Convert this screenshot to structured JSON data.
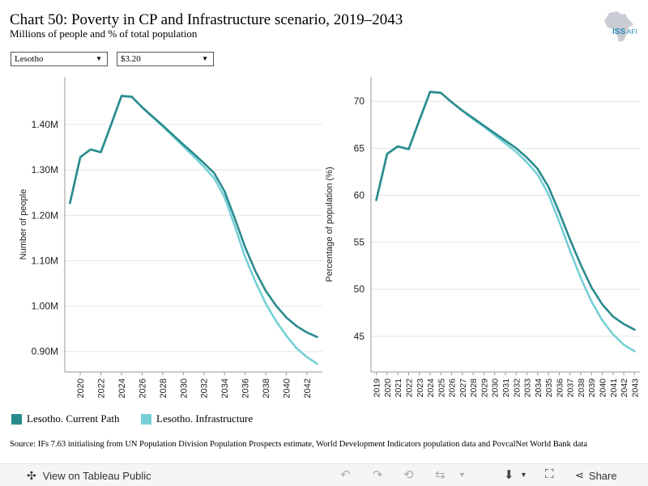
{
  "header": {
    "title": "Chart 50: Poverty in CP and Infrastructure scenario, 2019–2043",
    "subtitle": "Millions of people and % of total population",
    "logo_text": "ISS AFI"
  },
  "filters": {
    "country": "Lesotho",
    "poverty_line": "$3.20"
  },
  "colors": {
    "current_path": "#2a8b8e",
    "infrastructure": "#76d0d6",
    "grid": "#e4e4e4",
    "axis": "#999999"
  },
  "legend": {
    "current_path": "Lesotho. Current Path",
    "infrastructure": "Lesotho. Infrastructure"
  },
  "source": "Source: IFs 7.63 initialising from UN Population Division Population Prospects estimate, World Development Indicators population data and PovcalNet World Bank data",
  "footer": {
    "view_label": "View on Tableau Public",
    "share_label": "Share"
  },
  "chart_data": [
    {
      "type": "line",
      "ylabel": "Number of people",
      "y_tick_labels": [
        "0.90M",
        "1.00M",
        "1.10M",
        "1.20M",
        "1.30M",
        "1.40M"
      ],
      "y_ticks": [
        0.9,
        1.0,
        1.1,
        1.2,
        1.3,
        1.4
      ],
      "x_tick_labels": [
        "2020",
        "2022",
        "2024",
        "2026",
        "2028",
        "2030",
        "2032",
        "2034",
        "2036",
        "2038",
        "2040",
        "2042"
      ],
      "x_ticks": [
        2020,
        2022,
        2024,
        2026,
        2028,
        2030,
        2032,
        2034,
        2036,
        2038,
        2040,
        2042
      ],
      "xlim": [
        2018.5,
        2043.5
      ],
      "ylim": [
        0.855,
        1.505
      ],
      "x": [
        2019,
        2020,
        2021,
        2022,
        2023,
        2024,
        2025,
        2026,
        2027,
        2028,
        2029,
        2030,
        2031,
        2032,
        2033,
        2034,
        2035,
        2036,
        2037,
        2038,
        2039,
        2040,
        2041,
        2042,
        2043
      ],
      "series": [
        {
          "name": "Lesotho. Current Path",
          "values": [
            1.227,
            1.328,
            1.345,
            1.339,
            1.4,
            1.463,
            1.461,
            1.438,
            1.418,
            1.398,
            1.377,
            1.356,
            1.336,
            1.315,
            1.293,
            1.253,
            1.193,
            1.13,
            1.077,
            1.034,
            1.001,
            0.975,
            0.956,
            0.942,
            0.932
          ]
        },
        {
          "name": "Lesotho. Infrastructure",
          "values": [
            1.227,
            1.328,
            1.345,
            1.339,
            1.4,
            1.463,
            1.461,
            1.438,
            1.417,
            1.396,
            1.374,
            1.352,
            1.33,
            1.307,
            1.282,
            1.24,
            1.176,
            1.108,
            1.054,
            1.006,
            0.967,
            0.935,
            0.907,
            0.888,
            0.873
          ]
        }
      ]
    },
    {
      "type": "line",
      "ylabel": "Percentage of population (%)",
      "y_tick_labels": [
        "45",
        "50",
        "55",
        "60",
        "65",
        "70"
      ],
      "y_ticks": [
        45,
        50,
        55,
        60,
        65,
        70
      ],
      "x_tick_labels": [
        "2019",
        "2020",
        "2021",
        "2022",
        "2023",
        "2024",
        "2025",
        "2026",
        "2027",
        "2028",
        "2029",
        "2030",
        "2031",
        "2032",
        "2033",
        "2034",
        "2035",
        "2036",
        "2037",
        "2038",
        "2039",
        "2040",
        "2041",
        "2042",
        "2043"
      ],
      "x_ticks": [
        2019,
        2020,
        2021,
        2022,
        2023,
        2024,
        2025,
        2026,
        2027,
        2028,
        2029,
        2030,
        2031,
        2032,
        2033,
        2034,
        2035,
        2036,
        2037,
        2038,
        2039,
        2040,
        2041,
        2042,
        2043
      ],
      "xlim": [
        2018.5,
        2043.5
      ],
      "ylim": [
        41.2,
        72.6
      ],
      "x": [
        2019,
        2020,
        2021,
        2022,
        2023,
        2024,
        2025,
        2026,
        2027,
        2028,
        2029,
        2030,
        2031,
        2032,
        2033,
        2034,
        2035,
        2036,
        2037,
        2038,
        2039,
        2040,
        2041,
        2042,
        2043
      ],
      "series": [
        {
          "name": "Lesotho. Current Path",
          "values": [
            59.5,
            64.4,
            65.2,
            64.9,
            68.0,
            71.0,
            70.9,
            69.9,
            69.0,
            68.2,
            67.4,
            66.6,
            65.8,
            65.0,
            64.0,
            62.8,
            60.9,
            58.2,
            55.3,
            52.6,
            50.2,
            48.4,
            47.1,
            46.3,
            45.7
          ]
        },
        {
          "name": "Lesotho. Infrastructure",
          "values": [
            59.5,
            64.4,
            65.2,
            64.9,
            68.0,
            71.0,
            70.9,
            69.9,
            69.0,
            68.1,
            67.3,
            66.4,
            65.5,
            64.6,
            63.5,
            62.2,
            60.1,
            57.2,
            54.1,
            51.2,
            48.7,
            46.7,
            45.2,
            44.1,
            43.4
          ]
        }
      ]
    }
  ]
}
